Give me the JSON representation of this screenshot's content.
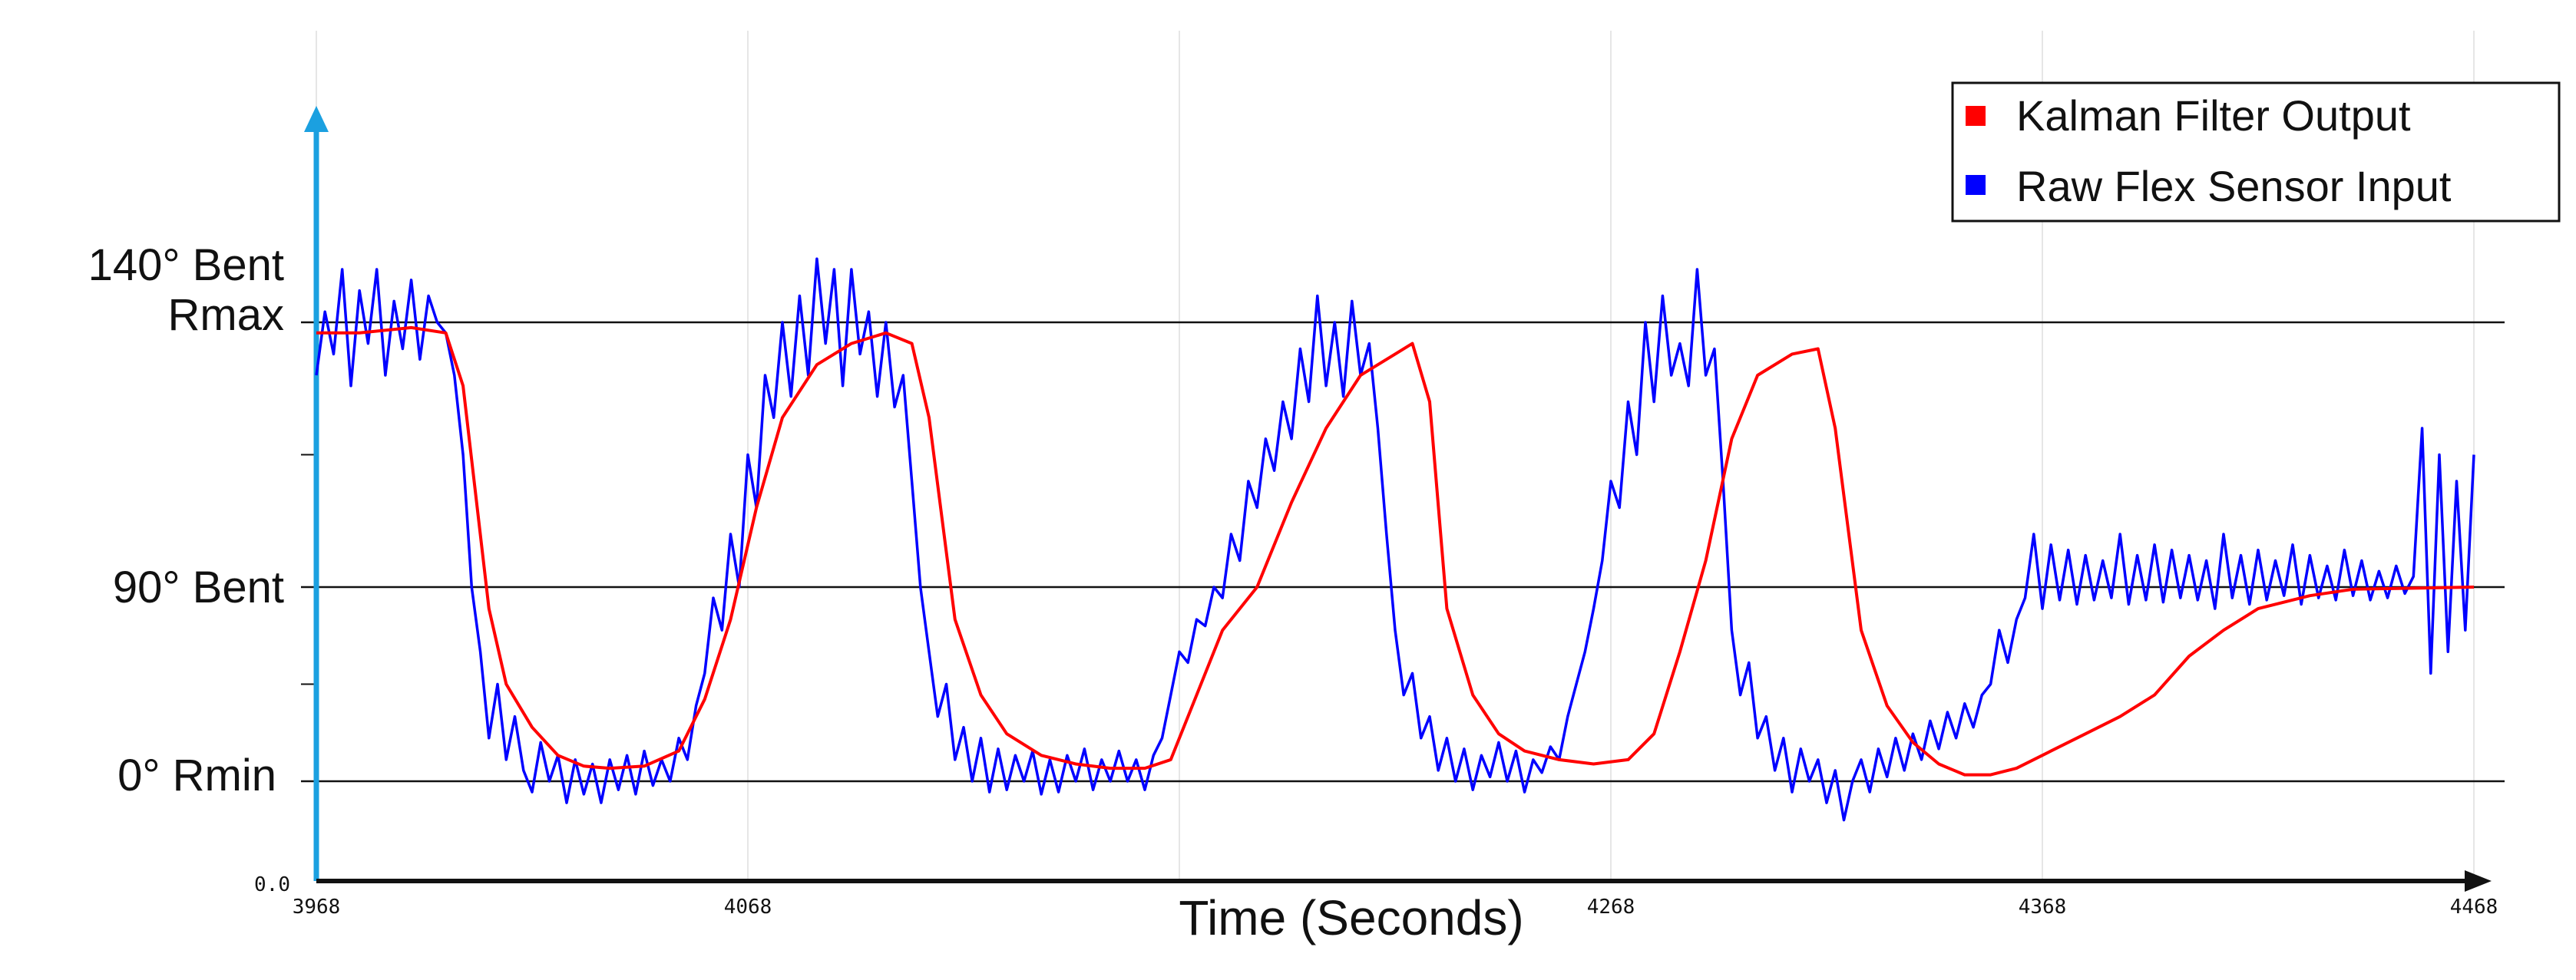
{
  "chart_data": {
    "type": "line",
    "title": "",
    "xlabel": "Time (Seconds)",
    "ylabel": "",
    "xlim": [
      3968,
      4468
    ],
    "ylim": [
      0,
      180
    ],
    "x_ticks": [
      "3968",
      "4068",
      "4268",
      "4368",
      "4468"
    ],
    "y_origin_label": "0.0",
    "reference_lines": [
      {
        "value": 140,
        "label_lines": [
          "140° Bent",
          "Rmax"
        ]
      },
      {
        "value": 90,
        "label_lines": [
          "90° Bent"
        ]
      },
      {
        "value": 0,
        "label_lines": [
          "0° Rmin"
        ]
      }
    ],
    "grid": "faint vertical gridlines",
    "legend_position": "top-right",
    "series": [
      {
        "name": "Kalman Filter Output",
        "color": "#ff0000",
        "points": [
          [
            3968,
            138
          ],
          [
            3978,
            138
          ],
          [
            3990,
            139
          ],
          [
            3998,
            138
          ],
          [
            4002,
            128
          ],
          [
            4008,
            80
          ],
          [
            4012,
            45
          ],
          [
            4018,
            25
          ],
          [
            4024,
            12
          ],
          [
            4030,
            7
          ],
          [
            4036,
            6
          ],
          [
            4044,
            7
          ],
          [
            4052,
            14
          ],
          [
            4058,
            38
          ],
          [
            4064,
            75
          ],
          [
            4070,
            105
          ],
          [
            4076,
            122
          ],
          [
            4084,
            132
          ],
          [
            4092,
            136
          ],
          [
            4100,
            138
          ],
          [
            4106,
            136
          ],
          [
            4110,
            122
          ],
          [
            4116,
            75
          ],
          [
            4122,
            40
          ],
          [
            4128,
            22
          ],
          [
            4136,
            12
          ],
          [
            4144,
            8
          ],
          [
            4152,
            6
          ],
          [
            4160,
            6
          ],
          [
            4166,
            10
          ],
          [
            4172,
            40
          ],
          [
            4178,
            70
          ],
          [
            4186,
            90
          ],
          [
            4194,
            106
          ],
          [
            4202,
            120
          ],
          [
            4210,
            130
          ],
          [
            4218,
            134
          ],
          [
            4222,
            136
          ],
          [
            4226,
            125
          ],
          [
            4230,
            80
          ],
          [
            4236,
            40
          ],
          [
            4242,
            22
          ],
          [
            4248,
            14
          ],
          [
            4256,
            10
          ],
          [
            4264,
            8
          ],
          [
            4272,
            10
          ],
          [
            4278,
            22
          ],
          [
            4284,
            60
          ],
          [
            4290,
            95
          ],
          [
            4296,
            118
          ],
          [
            4302,
            130
          ],
          [
            4310,
            134
          ],
          [
            4316,
            135
          ],
          [
            4320,
            120
          ],
          [
            4326,
            70
          ],
          [
            4332,
            35
          ],
          [
            4338,
            18
          ],
          [
            4344,
            8
          ],
          [
            4350,
            3
          ],
          [
            4356,
            3
          ],
          [
            4362,
            6
          ],
          [
            4370,
            14
          ],
          [
            4378,
            22
          ],
          [
            4386,
            30
          ],
          [
            4394,
            40
          ],
          [
            4402,
            58
          ],
          [
            4410,
            70
          ],
          [
            4418,
            80
          ],
          [
            4430,
            86
          ],
          [
            4440,
            89
          ],
          [
            4468,
            90
          ]
        ]
      },
      {
        "name": "Raw Flex Sensor Input",
        "color": "#0000ff",
        "points": [
          [
            3968,
            130
          ],
          [
            3970,
            142
          ],
          [
            3972,
            134
          ],
          [
            3974,
            150
          ],
          [
            3976,
            128
          ],
          [
            3978,
            146
          ],
          [
            3980,
            136
          ],
          [
            3982,
            150
          ],
          [
            3984,
            130
          ],
          [
            3986,
            144
          ],
          [
            3988,
            135
          ],
          [
            3990,
            148
          ],
          [
            3992,
            133
          ],
          [
            3994,
            145
          ],
          [
            3996,
            140
          ],
          [
            3998,
            138
          ],
          [
            4000,
            130
          ],
          [
            4002,
            115
          ],
          [
            4004,
            90
          ],
          [
            4006,
            60
          ],
          [
            4008,
            20
          ],
          [
            4010,
            45
          ],
          [
            4012,
            10
          ],
          [
            4014,
            30
          ],
          [
            4016,
            5
          ],
          [
            4018,
            -5
          ],
          [
            4020,
            18
          ],
          [
            4022,
            0
          ],
          [
            4024,
            12
          ],
          [
            4026,
            -10
          ],
          [
            4028,
            10
          ],
          [
            4030,
            -6
          ],
          [
            4032,
            8
          ],
          [
            4034,
            -10
          ],
          [
            4036,
            10
          ],
          [
            4038,
            -4
          ],
          [
            4040,
            12
          ],
          [
            4042,
            -6
          ],
          [
            4044,
            14
          ],
          [
            4046,
            -2
          ],
          [
            4048,
            10
          ],
          [
            4050,
            0
          ],
          [
            4052,
            20
          ],
          [
            4054,
            10
          ],
          [
            4056,
            35
          ],
          [
            4058,
            50
          ],
          [
            4060,
            85
          ],
          [
            4062,
            70
          ],
          [
            4064,
            100
          ],
          [
            4066,
            90
          ],
          [
            4068,
            115
          ],
          [
            4070,
            105
          ],
          [
            4072,
            130
          ],
          [
            4074,
            122
          ],
          [
            4076,
            140
          ],
          [
            4078,
            126
          ],
          [
            4080,
            145
          ],
          [
            4082,
            130
          ],
          [
            4084,
            152
          ],
          [
            4086,
            136
          ],
          [
            4088,
            150
          ],
          [
            4090,
            128
          ],
          [
            4092,
            150
          ],
          [
            4094,
            134
          ],
          [
            4096,
            142
          ],
          [
            4098,
            126
          ],
          [
            4100,
            140
          ],
          [
            4102,
            124
          ],
          [
            4104,
            130
          ],
          [
            4106,
            110
          ],
          [
            4108,
            90
          ],
          [
            4110,
            60
          ],
          [
            4112,
            30
          ],
          [
            4114,
            45
          ],
          [
            4116,
            10
          ],
          [
            4118,
            25
          ],
          [
            4120,
            0
          ],
          [
            4122,
            20
          ],
          [
            4124,
            -5
          ],
          [
            4126,
            15
          ],
          [
            4128,
            -4
          ],
          [
            4130,
            12
          ],
          [
            4132,
            0
          ],
          [
            4134,
            14
          ],
          [
            4136,
            -6
          ],
          [
            4138,
            10
          ],
          [
            4140,
            -5
          ],
          [
            4142,
            12
          ],
          [
            4144,
            0
          ],
          [
            4146,
            15
          ],
          [
            4148,
            -4
          ],
          [
            4150,
            10
          ],
          [
            4152,
            0
          ],
          [
            4154,
            14
          ],
          [
            4156,
            0
          ],
          [
            4158,
            10
          ],
          [
            4160,
            -4
          ],
          [
            4162,
            12
          ],
          [
            4164,
            20
          ],
          [
            4166,
            40
          ],
          [
            4168,
            60
          ],
          [
            4170,
            55
          ],
          [
            4172,
            75
          ],
          [
            4174,
            72
          ],
          [
            4176,
            90
          ],
          [
            4178,
            85
          ],
          [
            4180,
            100
          ],
          [
            4182,
            95
          ],
          [
            4184,
            110
          ],
          [
            4186,
            105
          ],
          [
            4188,
            118
          ],
          [
            4190,
            112
          ],
          [
            4192,
            125
          ],
          [
            4194,
            118
          ],
          [
            4196,
            135
          ],
          [
            4198,
            125
          ],
          [
            4200,
            145
          ],
          [
            4202,
            128
          ],
          [
            4204,
            140
          ],
          [
            4206,
            126
          ],
          [
            4208,
            144
          ],
          [
            4210,
            130
          ],
          [
            4212,
            136
          ],
          [
            4214,
            120
          ],
          [
            4216,
            100
          ],
          [
            4218,
            70
          ],
          [
            4220,
            40
          ],
          [
            4222,
            50
          ],
          [
            4224,
            20
          ],
          [
            4226,
            30
          ],
          [
            4228,
            5
          ],
          [
            4230,
            20
          ],
          [
            4232,
            0
          ],
          [
            4234,
            15
          ],
          [
            4236,
            -4
          ],
          [
            4238,
            12
          ],
          [
            4240,
            2
          ],
          [
            4242,
            18
          ],
          [
            4244,
            0
          ],
          [
            4246,
            14
          ],
          [
            4248,
            -5
          ],
          [
            4250,
            10
          ],
          [
            4252,
            4
          ],
          [
            4254,
            16
          ],
          [
            4256,
            10
          ],
          [
            4258,
            30
          ],
          [
            4260,
            45
          ],
          [
            4262,
            60
          ],
          [
            4264,
            80
          ],
          [
            4266,
            95
          ],
          [
            4268,
            110
          ],
          [
            4270,
            105
          ],
          [
            4272,
            125
          ],
          [
            4274,
            115
          ],
          [
            4276,
            140
          ],
          [
            4278,
            125
          ],
          [
            4280,
            145
          ],
          [
            4282,
            130
          ],
          [
            4284,
            136
          ],
          [
            4286,
            128
          ],
          [
            4288,
            150
          ],
          [
            4290,
            130
          ],
          [
            4292,
            135
          ],
          [
            4294,
            110
          ],
          [
            4296,
            70
          ],
          [
            4298,
            40
          ],
          [
            4300,
            55
          ],
          [
            4302,
            20
          ],
          [
            4304,
            30
          ],
          [
            4306,
            5
          ],
          [
            4308,
            20
          ],
          [
            4310,
            -5
          ],
          [
            4312,
            15
          ],
          [
            4314,
            0
          ],
          [
            4316,
            10
          ],
          [
            4318,
            -10
          ],
          [
            4320,
            5
          ],
          [
            4322,
            -18
          ],
          [
            4324,
            0
          ],
          [
            4326,
            10
          ],
          [
            4328,
            -5
          ],
          [
            4330,
            15
          ],
          [
            4332,
            2
          ],
          [
            4334,
            20
          ],
          [
            4336,
            5
          ],
          [
            4338,
            22
          ],
          [
            4340,
            10
          ],
          [
            4342,
            28
          ],
          [
            4344,
            15
          ],
          [
            4346,
            32
          ],
          [
            4348,
            20
          ],
          [
            4350,
            36
          ],
          [
            4352,
            25
          ],
          [
            4354,
            40
          ],
          [
            4356,
            45
          ],
          [
            4358,
            70
          ],
          [
            4360,
            55
          ],
          [
            4362,
            75
          ],
          [
            4364,
            85
          ],
          [
            4366,
            100
          ],
          [
            4368,
            80
          ],
          [
            4370,
            98
          ],
          [
            4372,
            84
          ],
          [
            4374,
            97
          ],
          [
            4376,
            82
          ],
          [
            4378,
            96
          ],
          [
            4380,
            84
          ],
          [
            4382,
            95
          ],
          [
            4384,
            85
          ],
          [
            4386,
            100
          ],
          [
            4388,
            82
          ],
          [
            4390,
            96
          ],
          [
            4392,
            84
          ],
          [
            4394,
            98
          ],
          [
            4396,
            83
          ],
          [
            4398,
            97
          ],
          [
            4400,
            85
          ],
          [
            4402,
            96
          ],
          [
            4404,
            84
          ],
          [
            4406,
            95
          ],
          [
            4408,
            80
          ],
          [
            4410,
            100
          ],
          [
            4412,
            85
          ],
          [
            4414,
            96
          ],
          [
            4416,
            82
          ],
          [
            4418,
            97
          ],
          [
            4420,
            84
          ],
          [
            4422,
            95
          ],
          [
            4424,
            86
          ],
          [
            4426,
            98
          ],
          [
            4428,
            82
          ],
          [
            4430,
            96
          ],
          [
            4432,
            85
          ],
          [
            4434,
            94
          ],
          [
            4436,
            84
          ],
          [
            4438,
            97
          ],
          [
            4440,
            86
          ],
          [
            4442,
            95
          ],
          [
            4444,
            84
          ],
          [
            4446,
            93
          ],
          [
            4448,
            85
          ],
          [
            4450,
            94
          ],
          [
            4452,
            87
          ],
          [
            4454,
            92
          ],
          [
            4456,
            120
          ],
          [
            4458,
            50
          ],
          [
            4460,
            115
          ],
          [
            4462,
            60
          ],
          [
            4464,
            110
          ],
          [
            4466,
            70
          ],
          [
            4468,
            115
          ]
        ]
      }
    ]
  }
}
